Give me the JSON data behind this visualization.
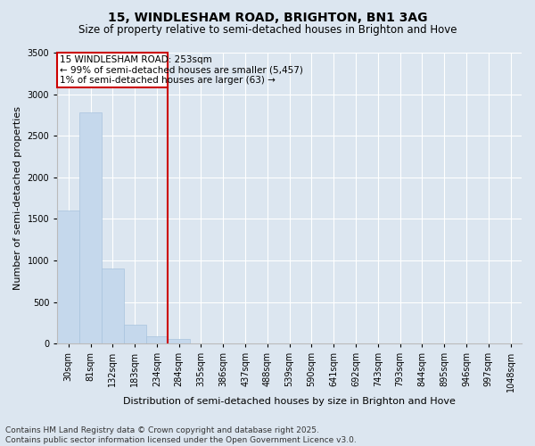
{
  "title": "15, WINDLESHAM ROAD, BRIGHTON, BN1 3AG",
  "subtitle": "Size of property relative to semi-detached houses in Brighton and Hove",
  "xlabel": "Distribution of semi-detached houses by size in Brighton and Hove",
  "ylabel": "Number of semi-detached properties",
  "footnote1": "Contains HM Land Registry data © Crown copyright and database right 2025.",
  "footnote2": "Contains public sector information licensed under the Open Government Licence v3.0.",
  "categories": [
    "30sqm",
    "81sqm",
    "132sqm",
    "183sqm",
    "234sqm",
    "284sqm",
    "335sqm",
    "386sqm",
    "437sqm",
    "488sqm",
    "539sqm",
    "590sqm",
    "641sqm",
    "692sqm",
    "743sqm",
    "793sqm",
    "844sqm",
    "895sqm",
    "946sqm",
    "997sqm",
    "1048sqm"
  ],
  "values": [
    1600,
    2780,
    900,
    230,
    90,
    55,
    5,
    0,
    0,
    0,
    0,
    0,
    0,
    0,
    0,
    0,
    0,
    0,
    0,
    0,
    0
  ],
  "bar_color": "#c5d8ec",
  "bar_edge_color": "#a8c4de",
  "vline_color": "#cc0000",
  "annotation_box_color": "#cc0000",
  "annotation_line1": "15 WINDLESHAM ROAD: 253sqm",
  "annotation_line2": "← 99% of semi-detached houses are smaller (5,457)",
  "annotation_line3": "1% of semi-detached houses are larger (63) →",
  "vline_position": 4.5,
  "ylim": [
    0,
    3500
  ],
  "yticks": [
    0,
    500,
    1000,
    1500,
    2000,
    2500,
    3000,
    3500
  ],
  "bg_color": "#dce6f0",
  "plot_bg_color": "#dce6f0",
  "grid_color": "#ffffff",
  "title_fontsize": 10,
  "subtitle_fontsize": 8.5,
  "label_fontsize": 8,
  "tick_fontsize": 7,
  "annot_fontsize": 7.5,
  "footnote_fontsize": 6.5
}
